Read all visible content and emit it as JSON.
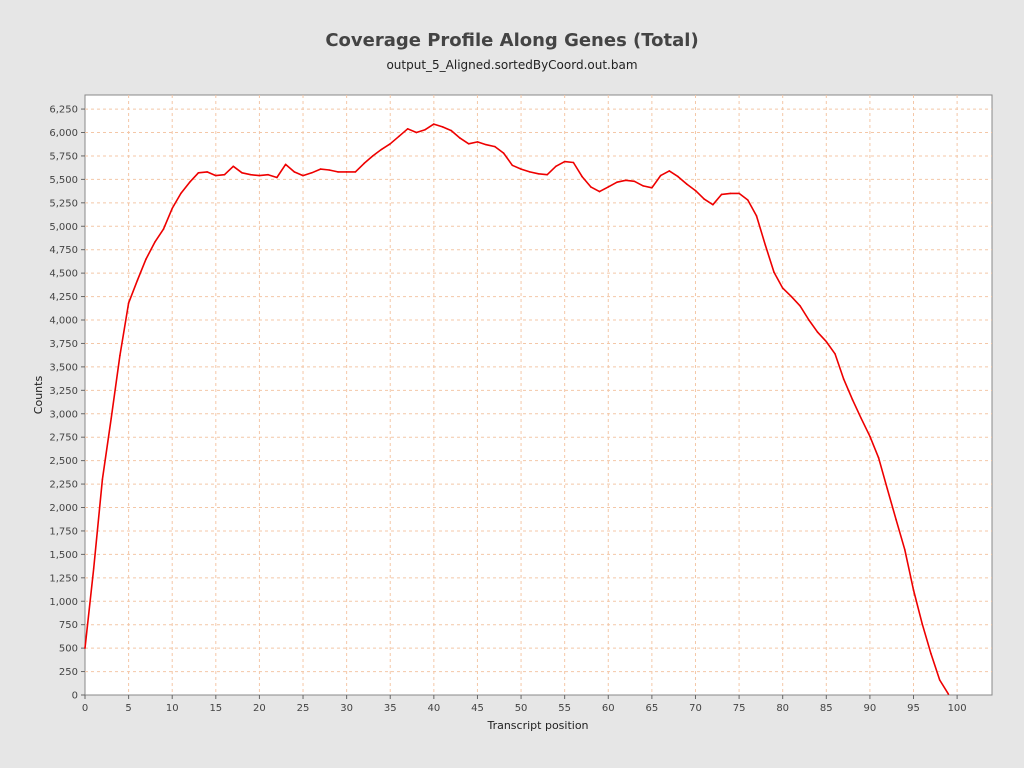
{
  "chart_data": {
    "type": "line",
    "title": "Coverage Profile Along Genes (Total)",
    "subtitle": "output_5_Aligned.sortedByCoord.out.bam",
    "xlabel": "Transcript position",
    "ylabel": "Counts",
    "xlim": [
      0,
      104
    ],
    "ylim": [
      0,
      6400
    ],
    "xticks": [
      0,
      5,
      10,
      15,
      20,
      25,
      30,
      35,
      40,
      45,
      50,
      55,
      60,
      65,
      70,
      75,
      80,
      85,
      90,
      95,
      100
    ],
    "yticks": [
      0,
      250,
      500,
      750,
      1000,
      1250,
      1500,
      1750,
      2000,
      2250,
      2500,
      2750,
      3000,
      3250,
      3500,
      3750,
      4000,
      4250,
      4500,
      4750,
      5000,
      5250,
      5500,
      5750,
      6000,
      6250
    ],
    "ytick_labels": [
      "0",
      "250",
      "500",
      "750",
      "1,000",
      "1,250",
      "1,500",
      "1,750",
      "2,000",
      "2,250",
      "2,500",
      "2,750",
      "3,000",
      "3,250",
      "3,500",
      "3,750",
      "4,000",
      "4,250",
      "4,500",
      "4,750",
      "5,000",
      "5,250",
      "5,500",
      "5,750",
      "6,000",
      "6,250"
    ],
    "grid": true,
    "line_color": "#ee0000",
    "grid_color": "#f4c7a7",
    "series": [
      {
        "x": [
          0,
          1,
          2,
          3,
          4,
          5,
          6,
          7,
          8,
          9,
          10,
          11,
          12,
          13,
          14,
          15,
          16,
          17,
          18,
          19,
          20,
          21,
          22,
          23,
          24,
          25,
          26,
          27,
          28,
          29,
          30,
          31,
          32,
          33,
          34,
          35,
          36,
          37,
          38,
          39,
          40,
          41,
          42,
          43,
          44,
          45,
          46,
          47,
          48,
          49,
          50,
          51,
          52,
          53,
          54,
          55,
          56,
          57,
          58,
          59,
          60,
          61,
          62,
          63,
          64,
          65,
          66,
          67,
          68,
          69,
          70,
          71,
          72,
          73,
          74,
          75,
          76,
          77,
          78,
          79,
          80,
          81,
          82,
          83,
          84,
          85,
          86,
          87,
          88,
          89,
          90,
          91,
          92,
          93,
          94,
          95,
          96,
          97,
          98,
          99
        ],
        "values": [
          500,
          1350,
          2300,
          2950,
          3620,
          4180,
          4420,
          4650,
          4830,
          4970,
          5190,
          5350,
          5470,
          5570,
          5580,
          5540,
          5550,
          5640,
          5570,
          5550,
          5540,
          5550,
          5520,
          5660,
          5580,
          5540,
          5570,
          5610,
          5600,
          5580,
          5580,
          5580,
          5670,
          5750,
          5820,
          5880,
          5960,
          6040,
          6000,
          6030,
          6090,
          6060,
          6020,
          5940,
          5880,
          5900,
          5870,
          5850,
          5780,
          5650,
          5610,
          5580,
          5560,
          5550,
          5640,
          5690,
          5680,
          5530,
          5420,
          5370,
          5420,
          5470,
          5490,
          5480,
          5430,
          5410,
          5540,
          5590,
          5530,
          5450,
          5380,
          5290,
          5230,
          5340,
          5350,
          5350,
          5280,
          5110,
          4800,
          4510,
          4340,
          4250,
          4150,
          4000,
          3870,
          3770,
          3640,
          3370,
          3150,
          2950,
          2760,
          2530,
          2200,
          1870,
          1550,
          1120,
          760,
          440,
          160,
          10
        ]
      }
    ]
  }
}
